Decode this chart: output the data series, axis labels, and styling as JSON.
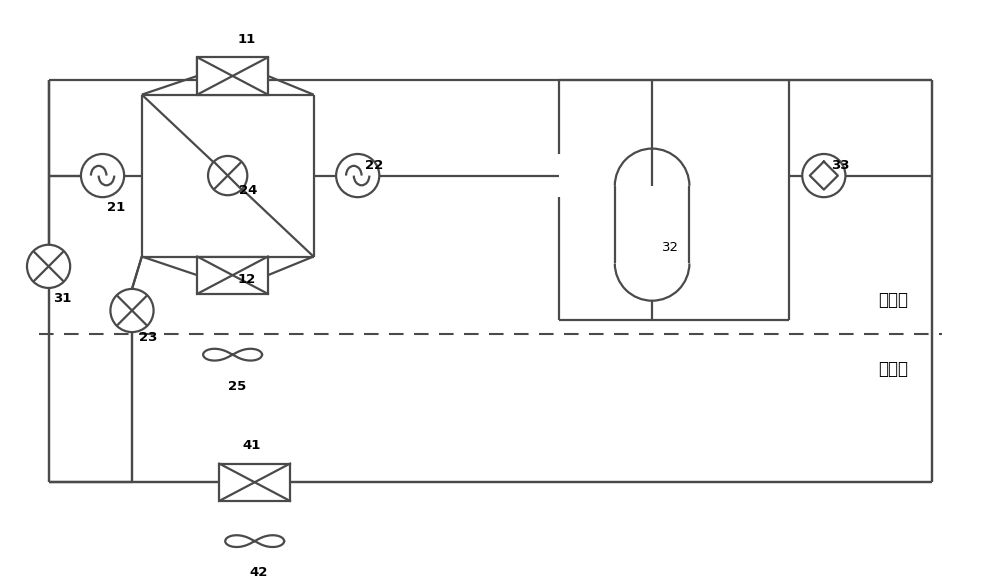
{
  "bg_color": "#ffffff",
  "line_color": "#4a4a4a",
  "text_color": "#000000",
  "dashed_line_y": 0.415,
  "outdoor_label": "室外側",
  "indoor_label": "室内側",
  "figsize": [
    10.0,
    5.8
  ],
  "dpi": 100
}
